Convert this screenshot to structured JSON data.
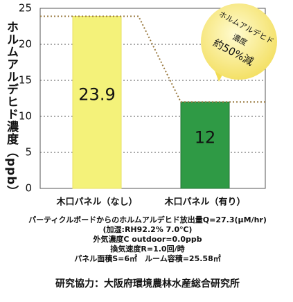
{
  "chart_data": {
    "type": "bar",
    "y_label": "ホルムアルデヒド濃度（ppb）",
    "categories": [
      "木口パネル（なし）",
      "木口パネル（有り）"
    ],
    "values": [
      23.9,
      12
    ],
    "colors": [
      "#f4f27a",
      "#2f9a45"
    ],
    "ylim": [
      0,
      25
    ],
    "yticks": [
      0,
      5,
      10,
      15,
      20,
      25
    ],
    "grid": true,
    "annotation": [
      "ホルムアルデヒド",
      "濃度",
      "約50%減"
    ],
    "notes": [
      "パーティクルボードからのホルムアルデヒド放出量Q=27.3(μM/hr)",
      "(加湿:RH92.2% 7.0℃)",
      "外気濃度C outdoor=0.0ppb",
      "換気速度R=1.0回/時",
      "パネル面積S=6㎡　ルーム容積=25.58㎡"
    ],
    "credit": "研究協力：大阪府環境農林水産総合研究所"
  }
}
